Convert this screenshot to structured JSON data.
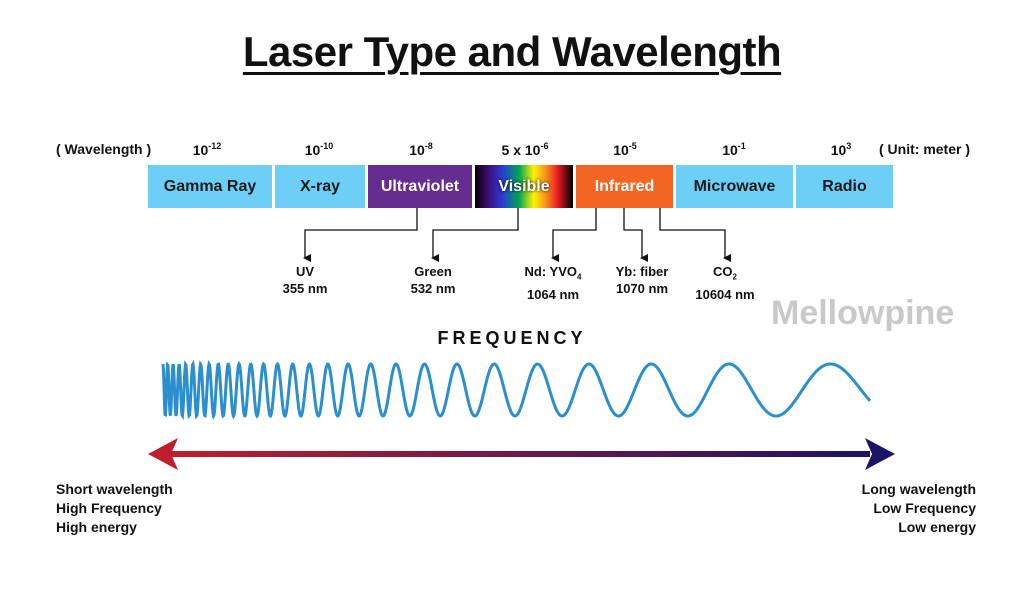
{
  "title": "Laser Type and Wavelength",
  "wavelength_label": "( Wavelength )",
  "unit_label": "( Unit: meter )",
  "exponents": [
    {
      "base": "10",
      "sup": "-12"
    },
    {
      "base": "10",
      "sup": "-10"
    },
    {
      "base": "10",
      "sup": "-8"
    },
    {
      "base": "5 x 10",
      "sup": "-6"
    },
    {
      "base": "10",
      "sup": "-5"
    },
    {
      "base": "10",
      "sup": "-1"
    },
    {
      "base": "10",
      "sup": "3"
    }
  ],
  "bands": [
    {
      "label": "Gamma Ray",
      "color": "#6dcff6"
    },
    {
      "label": "X-ray",
      "color": "#6dcff6"
    },
    {
      "label": "Ultraviolet",
      "color": "#662d91"
    },
    {
      "label": "Visible",
      "color": "#000000"
    },
    {
      "label": "Infrared",
      "color": "#f26522"
    },
    {
      "label": "Microwave",
      "color": "#6dcff6"
    },
    {
      "label": "Radio",
      "color": "#6dcff6"
    }
  ],
  "lasers": [
    {
      "name": "UV",
      "sub": "",
      "name_after": "",
      "wavelength": "355 nm"
    },
    {
      "name": "Green",
      "sub": "",
      "name_after": "",
      "wavelength": "532 nm"
    },
    {
      "name": "Nd: YVO",
      "sub": "4",
      "name_after": "",
      "wavelength": "1064 nm"
    },
    {
      "name": "Yb: fiber",
      "sub": "",
      "name_after": "",
      "wavelength": "1070 nm"
    },
    {
      "name": "CO",
      "sub": "2",
      "name_after": "",
      "wavelength": "10604 nm"
    }
  ],
  "watermark": "Mellowpine",
  "frequency_label": "FREQUENCY",
  "left_notes": [
    "Short wavelength",
    "High Frequency",
    "High energy"
  ],
  "right_notes": [
    "Long wavelength",
    "Low Frequency",
    "Low energy"
  ],
  "colors": {
    "wave": "#2b8fce",
    "arrow_left": "#be1e2d",
    "arrow_right": "#1b1464",
    "spectrum_bar": "#6dcff6"
  }
}
